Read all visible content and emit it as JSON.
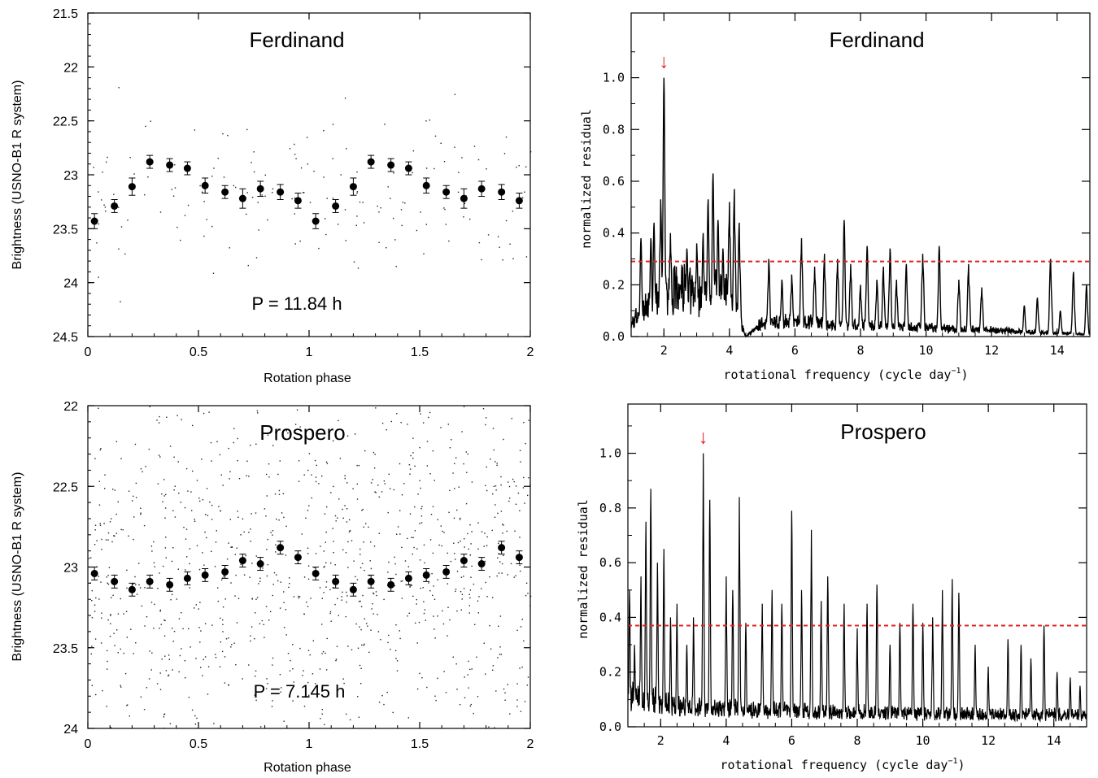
{
  "chart_data": [
    {
      "type": "scatter",
      "title": "Ferdinand",
      "annotation": "P = 11.84 h",
      "xlabel": "Rotation phase",
      "ylabel": "Brightness (USNO-B1 R system)",
      "xlim": [
        0,
        2
      ],
      "ylim": [
        24.5,
        21.5
      ],
      "y_inverted": true,
      "xticks": [
        "0",
        "0.5",
        "1",
        "1.5",
        "2"
      ],
      "yticks": [
        "21.5",
        "22",
        "22.5",
        "23",
        "23.5",
        "24",
        "24.5"
      ],
      "grid": false,
      "binned": {
        "x": [
          0.03,
          0.12,
          0.2,
          0.28,
          0.37,
          0.45,
          0.53,
          0.62,
          0.7,
          0.78,
          0.87,
          0.95,
          1.03,
          1.12,
          1.2,
          1.28,
          1.37,
          1.45,
          1.53,
          1.62,
          1.7,
          1.78,
          1.87,
          1.95
        ],
        "y": [
          23.43,
          23.29,
          23.11,
          22.88,
          22.91,
          22.94,
          23.1,
          23.16,
          23.22,
          23.13,
          23.16,
          23.24,
          23.43,
          23.29,
          23.11,
          22.88,
          22.91,
          22.94,
          23.1,
          23.16,
          23.22,
          23.13,
          23.16,
          23.24
        ],
        "err": [
          0.07,
          0.06,
          0.08,
          0.06,
          0.06,
          0.06,
          0.07,
          0.06,
          0.09,
          0.07,
          0.07,
          0.07,
          0.07,
          0.06,
          0.08,
          0.06,
          0.06,
          0.06,
          0.07,
          0.06,
          0.09,
          0.07,
          0.07,
          0.07
        ]
      },
      "raw_points": {
        "n": 180,
        "y_center": 23.15,
        "y_spread": 0.55,
        "seed": 11
      }
    },
    {
      "type": "line",
      "title": "Ferdinand",
      "xlabel": "rotational frequency (cycle day",
      "xlabel_sup": "−1",
      "xlabel_end": ")",
      "ylabel": "normalized residual",
      "xlim": [
        1,
        15
      ],
      "ylim": [
        0,
        1.25
      ],
      "xticks": [
        "2",
        "4",
        "6",
        "8",
        "10",
        "12",
        "14"
      ],
      "yticks": [
        "0.0",
        "0.2",
        "0.4",
        "0.6",
        "0.8",
        "1.0"
      ],
      "threshold": 0.29,
      "peak_marker_x": 2.0,
      "peaks": [
        [
          1.3,
          0.38
        ],
        [
          1.6,
          0.38
        ],
        [
          1.7,
          0.44
        ],
        [
          1.9,
          0.53
        ],
        [
          2.0,
          1.0
        ],
        [
          2.2,
          0.4
        ],
        [
          2.7,
          0.34
        ],
        [
          3.0,
          0.36
        ],
        [
          3.2,
          0.4
        ],
        [
          3.35,
          0.53
        ],
        [
          3.5,
          0.63
        ],
        [
          3.65,
          0.45
        ],
        [
          3.8,
          0.34
        ],
        [
          4.0,
          0.52
        ],
        [
          4.15,
          0.57
        ],
        [
          4.3,
          0.44
        ],
        [
          5.2,
          0.3
        ],
        [
          5.6,
          0.22
        ],
        [
          5.9,
          0.24
        ],
        [
          6.2,
          0.38
        ],
        [
          6.6,
          0.27
        ],
        [
          6.9,
          0.32
        ],
        [
          7.3,
          0.3
        ],
        [
          7.5,
          0.45
        ],
        [
          7.7,
          0.28
        ],
        [
          8.0,
          0.2
        ],
        [
          8.2,
          0.35
        ],
        [
          8.5,
          0.22
        ],
        [
          8.7,
          0.27
        ],
        [
          8.9,
          0.34
        ],
        [
          9.1,
          0.22
        ],
        [
          9.4,
          0.28
        ],
        [
          9.9,
          0.32
        ],
        [
          10.4,
          0.35
        ],
        [
          11.0,
          0.22
        ],
        [
          11.3,
          0.28
        ],
        [
          11.7,
          0.19
        ],
        [
          13.0,
          0.12
        ],
        [
          13.4,
          0.15
        ],
        [
          13.8,
          0.3
        ],
        [
          14.1,
          0.1
        ],
        [
          14.5,
          0.25
        ],
        [
          14.9,
          0.2
        ]
      ],
      "baseline": [
        [
          1.0,
          0.05
        ],
        [
          1.3,
          0.12
        ],
        [
          2.5,
          0.22
        ],
        [
          3.0,
          0.18
        ],
        [
          4.0,
          0.2
        ],
        [
          4.5,
          0.0
        ],
        [
          5.0,
          0.06
        ],
        [
          6.0,
          0.07
        ],
        [
          8.0,
          0.05
        ],
        [
          10.0,
          0.04
        ],
        [
          11.5,
          0.03
        ],
        [
          12.0,
          0.03
        ],
        [
          13.0,
          0.02
        ],
        [
          15.0,
          0.01
        ]
      ]
    },
    {
      "type": "scatter",
      "title": "Prospero",
      "annotation": "P = 7.145 h",
      "xlabel": "Rotation phase",
      "ylabel": "Brightness (USNO-B1 R system)",
      "xlim": [
        0,
        2
      ],
      "ylim": [
        24,
        22
      ],
      "y_inverted": true,
      "xticks": [
        "0",
        "0.5",
        "1",
        "1.5",
        "2"
      ],
      "yticks": [
        "22",
        "22.5",
        "23",
        "23.5",
        "24"
      ],
      "grid": false,
      "binned": {
        "x": [
          0.03,
          0.12,
          0.2,
          0.28,
          0.37,
          0.45,
          0.53,
          0.62,
          0.7,
          0.78,
          0.87,
          0.95,
          1.03,
          1.12,
          1.2,
          1.28,
          1.37,
          1.45,
          1.53,
          1.62,
          1.7,
          1.78,
          1.87,
          1.95
        ],
        "y": [
          23.04,
          23.09,
          23.14,
          23.09,
          23.11,
          23.07,
          23.05,
          23.03,
          22.96,
          22.98,
          22.88,
          22.94,
          23.04,
          23.09,
          23.14,
          23.09,
          23.11,
          23.07,
          23.05,
          23.03,
          22.96,
          22.98,
          22.88,
          22.94
        ],
        "err": [
          0.04,
          0.04,
          0.04,
          0.04,
          0.04,
          0.04,
          0.04,
          0.04,
          0.04,
          0.04,
          0.04,
          0.04,
          0.04,
          0.04,
          0.04,
          0.04,
          0.04,
          0.04,
          0.04,
          0.04,
          0.04,
          0.04,
          0.04,
          0.04
        ]
      },
      "raw_points": {
        "n": 1100,
        "y_center": 23.0,
        "y_spread": 0.95,
        "seed": 7
      }
    },
    {
      "type": "line",
      "title": "Prospero",
      "xlabel": "rotational frequency (cycle day",
      "xlabel_sup": "−1",
      "xlabel_end": ")",
      "ylabel": "normalized residual",
      "xlim": [
        1,
        15
      ],
      "ylim": [
        0,
        1.18
      ],
      "xticks": [
        "2",
        "4",
        "6",
        "8",
        "10",
        "12",
        "14"
      ],
      "yticks": [
        "0.0",
        "0.2",
        "0.4",
        "0.6",
        "0.8",
        "1.0"
      ],
      "threshold": 0.37,
      "peak_marker_x": 3.3,
      "peaks": [
        [
          1.05,
          0.5
        ],
        [
          1.2,
          0.3
        ],
        [
          1.4,
          0.55
        ],
        [
          1.55,
          0.75
        ],
        [
          1.7,
          0.87
        ],
        [
          1.9,
          0.6
        ],
        [
          2.1,
          0.65
        ],
        [
          2.3,
          0.4
        ],
        [
          2.5,
          0.45
        ],
        [
          2.8,
          0.3
        ],
        [
          3.0,
          0.4
        ],
        [
          3.3,
          1.0
        ],
        [
          3.5,
          0.83
        ],
        [
          4.0,
          0.55
        ],
        [
          4.2,
          0.5
        ],
        [
          4.4,
          0.84
        ],
        [
          4.6,
          0.38
        ],
        [
          5.1,
          0.45
        ],
        [
          5.4,
          0.5
        ],
        [
          5.7,
          0.45
        ],
        [
          6.0,
          0.79
        ],
        [
          6.3,
          0.5
        ],
        [
          6.6,
          0.72
        ],
        [
          6.9,
          0.46
        ],
        [
          7.1,
          0.55
        ],
        [
          7.6,
          0.45
        ],
        [
          8.0,
          0.36
        ],
        [
          8.3,
          0.45
        ],
        [
          8.6,
          0.52
        ],
        [
          9.0,
          0.3
        ],
        [
          9.3,
          0.38
        ],
        [
          9.7,
          0.45
        ],
        [
          10.0,
          0.38
        ],
        [
          10.3,
          0.4
        ],
        [
          10.6,
          0.5
        ],
        [
          10.9,
          0.54
        ],
        [
          11.1,
          0.49
        ],
        [
          11.6,
          0.3
        ],
        [
          12.0,
          0.22
        ],
        [
          12.6,
          0.32
        ],
        [
          13.0,
          0.3
        ],
        [
          13.3,
          0.25
        ],
        [
          13.7,
          0.37
        ],
        [
          14.1,
          0.2
        ],
        [
          14.5,
          0.18
        ],
        [
          14.8,
          0.15
        ]
      ],
      "baseline": [
        [
          1.0,
          0.14
        ],
        [
          2.0,
          0.1
        ],
        [
          3.0,
          0.08
        ],
        [
          5.0,
          0.07
        ],
        [
          8.0,
          0.06
        ],
        [
          12.0,
          0.05
        ],
        [
          15.0,
          0.05
        ]
      ]
    }
  ]
}
